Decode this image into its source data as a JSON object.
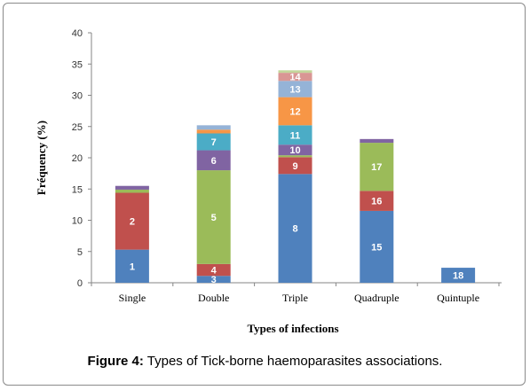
{
  "caption": {
    "bold": "Figure 4:",
    "text": " Types of Tick-borne haemoparasites associations."
  },
  "chart_data": {
    "type": "bar",
    "stacked": true,
    "xlabel": "Types of infections",
    "ylabel": "Fréquency (%)",
    "ylim": [
      0,
      40
    ],
    "yticks": [
      0,
      5,
      10,
      15,
      20,
      25,
      30,
      35,
      40
    ],
    "grid": false,
    "legend": "none",
    "categories": [
      "Single",
      "Double",
      "Triple",
      "Quadruple",
      "Quintuple"
    ],
    "stacks": [
      [
        {
          "label": "1",
          "value": 5.3,
          "color": "#4f81bd"
        },
        {
          "label": "2",
          "value": 9.1,
          "color": "#c0504d"
        },
        {
          "label": "",
          "value": 0.5,
          "color": "#9bbb59"
        },
        {
          "label": "",
          "value": 0.6,
          "color": "#8064a2"
        }
      ],
      [
        {
          "label": "3",
          "value": 1.1,
          "color": "#4f81bd"
        },
        {
          "label": "4",
          "value": 1.9,
          "color": "#c0504d"
        },
        {
          "label": "5",
          "value": 15.0,
          "color": "#9bbb59"
        },
        {
          "label": "6",
          "value": 3.2,
          "color": "#8064a2"
        },
        {
          "label": "7",
          "value": 2.7,
          "color": "#4bacc6"
        },
        {
          "label": "",
          "value": 0.6,
          "color": "#f79646"
        },
        {
          "label": "",
          "value": 0.7,
          "color": "#95b3d7"
        }
      ],
      [
        {
          "label": "8",
          "value": 17.4,
          "color": "#4f81bd"
        },
        {
          "label": "9",
          "value": 2.7,
          "color": "#c0504d"
        },
        {
          "label": "",
          "value": 0.3,
          "color": "#9bbb59"
        },
        {
          "label": "10",
          "value": 1.7,
          "color": "#8064a2"
        },
        {
          "label": "11",
          "value": 3.1,
          "color": "#4bacc6"
        },
        {
          "label": "12",
          "value": 4.5,
          "color": "#f79646"
        },
        {
          "label": "13",
          "value": 2.6,
          "color": "#95b3d7"
        },
        {
          "label": "14",
          "value": 1.3,
          "color": "#d99694"
        },
        {
          "label": "",
          "value": 0.4,
          "color": "#c3d69b"
        }
      ],
      [
        {
          "label": "15",
          "value": 11.5,
          "color": "#4f81bd"
        },
        {
          "label": "16",
          "value": 3.2,
          "color": "#c0504d"
        },
        {
          "label": "17",
          "value": 7.7,
          "color": "#9bbb59"
        },
        {
          "label": "",
          "value": 0.6,
          "color": "#8064a2"
        }
      ],
      [
        {
          "label": "18",
          "value": 2.4,
          "color": "#4f81bd"
        }
      ]
    ]
  }
}
